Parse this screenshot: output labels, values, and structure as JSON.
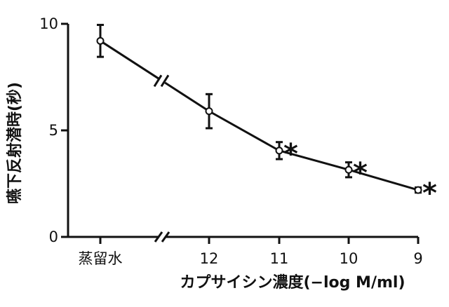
{
  "chart_data": {
    "type": "line",
    "ylabel": "嚥下反射潜時(秒)",
    "xlabel": "カプサイシン濃度(−log M/ml)",
    "categories": [
      "蒸留水",
      "12",
      "11",
      "10",
      "9"
    ],
    "axis_break": "between 蒸留水 and 12",
    "yticks": [
      "0",
      "5",
      "10"
    ],
    "ylim": [
      0,
      10
    ],
    "grid": false,
    "legend": "none",
    "series": [
      {
        "values": [
          9.2,
          5.9,
          4.05,
          3.15,
          2.2
        ],
        "error": [
          0.75,
          0.8,
          0.4,
          0.35,
          0.12
        ],
        "significant": [
          false,
          false,
          true,
          true,
          true
        ]
      }
    ],
    "significance_marker": "*",
    "colors": {
      "line": "#111111",
      "marker_fill": "#ffffff"
    }
  }
}
